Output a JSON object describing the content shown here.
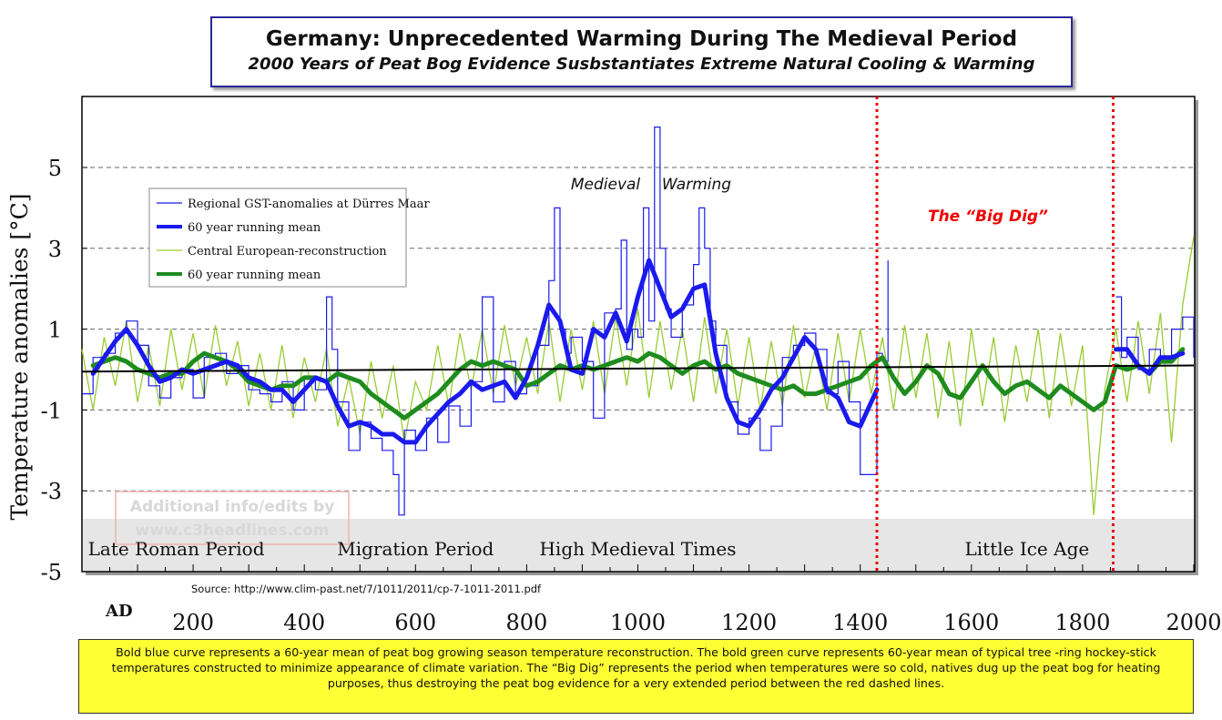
{
  "title": "Germany: Unprecedented Warming During The Medieval Period",
  "subtitle": "2000 Years of Peat Bog Evidence Susbstantiates Extreme Natural Cooling & Warming",
  "caption": "Bold blue curve represents a 60-year mean of peat bog growing season temperature reconstruction. The bold green curve represents 60-year mean of typical tree -ring hockey-stick temperatures constructed to minimize appearance of climate variation. The “Big Dig” represents the period when temperatures were so cold, natives dug up the peat bog for heating purposes, thus destroying the peat bog evidence for a very extended period between the red dashed lines.",
  "source": "Source: http://www.clim-past.net/7/1011/2011/cp-7-1011-2011.pdf",
  "watermark": [
    "Additional info/edits by",
    "www.c3headlines.com"
  ],
  "colors": {
    "blue": "#1a1aee",
    "green": "#1e8c1e",
    "light_green": "#99cc33",
    "red": "#ee0000",
    "band": "#e6e6e6",
    "caption_bg": "#ffff33"
  },
  "chart_data": {
    "type": "line",
    "ylabel": "Temperature anomalies [°C]",
    "xlabel_prefix": "AD",
    "xlim": [
      0,
      2000
    ],
    "ylim": [
      -5,
      7
    ],
    "x_ticks": [
      200,
      400,
      600,
      800,
      1000,
      1200,
      1400,
      1600,
      1800,
      2000
    ],
    "y_ticks": [
      -5,
      -3,
      -1,
      1,
      3,
      5
    ],
    "y_gridlines": [
      -3,
      -1,
      1,
      3,
      5
    ],
    "zero_line": 0,
    "legend": {
      "placement": "upper-left",
      "entries": [
        "Regional GST-anomalies at Dürres Maar",
        "60 year running mean",
        "Central European-reconstruction",
        "60 year running mean"
      ]
    },
    "annotations": {
      "medieval_left": "Medieval",
      "medieval_right": "Warming",
      "big_dig": "The “Big Dig”"
    },
    "periods": [
      {
        "label": "Late Roman Period",
        "x": 150
      },
      {
        "label": "Migration Period",
        "x": 600
      },
      {
        "label": "High Medieval Times",
        "x": 1000
      },
      {
        "label": "Little Ice Age",
        "x": 1700
      }
    ],
    "big_dig_bounds": [
      1430,
      1855
    ],
    "series": [
      {
        "name": "Regional GST-anomalies at Dürres Maar",
        "x": [
          0,
          20,
          40,
          60,
          80,
          100,
          120,
          140,
          160,
          180,
          200,
          220,
          240,
          260,
          280,
          300,
          320,
          340,
          360,
          380,
          400,
          420,
          440,
          450,
          460,
          480,
          500,
          520,
          540,
          560,
          570,
          580,
          600,
          620,
          640,
          660,
          680,
          700,
          720,
          740,
          760,
          780,
          800,
          820,
          840,
          850,
          860,
          870,
          880,
          900,
          920,
          940,
          960,
          970,
          980,
          990,
          1000,
          1010,
          1020,
          1030,
          1040,
          1050,
          1060,
          1080,
          1100,
          1110,
          1120,
          1130,
          1140,
          1160,
          1180,
          1200,
          1220,
          1240,
          1260,
          1280,
          1300,
          1320,
          1340,
          1360,
          1380,
          1400,
          1420,
          1430,
          1440,
          1450,
          1860,
          1870,
          1880,
          1900,
          1920,
          1940,
          1960,
          1980,
          2000
        ],
        "y": [
          -0.6,
          0.3,
          0.4,
          0.9,
          1.2,
          0.6,
          -0.4,
          -0.7,
          -0.2,
          0.0,
          -0.7,
          0.3,
          0.4,
          -0.1,
          0.1,
          -0.5,
          -0.6,
          -0.8,
          -0.3,
          -1.0,
          -0.2,
          -0.5,
          1.8,
          0.5,
          -0.8,
          -2.0,
          -1.3,
          -1.7,
          -2.0,
          -2.6,
          -3.6,
          -1.5,
          -2.0,
          -1.2,
          -1.8,
          -0.9,
          -1.4,
          -0.3,
          1.8,
          -0.8,
          0.2,
          -0.6,
          -0.4,
          0.6,
          2.2,
          4.0,
          1.0,
          0.4,
          0.8,
          0.2,
          -1.2,
          1.4,
          1.5,
          3.2,
          0.5,
          1.0,
          0.8,
          4.0,
          1.2,
          6.0,
          3.0,
          1.5,
          0.8,
          1.6,
          2.6,
          4.0,
          3.0,
          1.2,
          0.6,
          -0.8,
          -1.6,
          -1.2,
          -2.0,
          -1.4,
          0.3,
          0.6,
          0.9,
          0.5,
          -0.6,
          0.2,
          -0.8,
          -2.6,
          -2.6,
          0.4,
          0.2,
          2.7,
          1.8,
          0.3,
          0.8,
          0.0,
          0.5,
          0.2,
          1.0,
          1.3,
          0.3
        ]
      },
      {
        "name": "60 year running mean",
        "x": [
          20,
          40,
          60,
          80,
          100,
          120,
          140,
          160,
          180,
          200,
          220,
          240,
          260,
          280,
          300,
          320,
          340,
          360,
          380,
          400,
          420,
          440,
          460,
          480,
          500,
          520,
          540,
          560,
          580,
          600,
          620,
          640,
          660,
          680,
          700,
          720,
          740,
          760,
          780,
          800,
          820,
          840,
          860,
          880,
          900,
          920,
          940,
          960,
          980,
          1000,
          1020,
          1040,
          1060,
          1080,
          1100,
          1120,
          1140,
          1160,
          1180,
          1200,
          1220,
          1240,
          1260,
          1280,
          1300,
          1320,
          1340,
          1360,
          1380,
          1400,
          1420,
          1430,
          1860,
          1880,
          1900,
          1920,
          1940,
          1960,
          1980
        ],
        "y": [
          -0.1,
          0.3,
          0.7,
          1.0,
          0.6,
          0.1,
          -0.3,
          -0.2,
          0.0,
          -0.1,
          0.0,
          0.1,
          0.2,
          0.1,
          -0.2,
          -0.3,
          -0.5,
          -0.5,
          -0.8,
          -0.5,
          -0.2,
          -0.3,
          -0.9,
          -1.4,
          -1.3,
          -1.4,
          -1.6,
          -1.6,
          -1.8,
          -1.8,
          -1.4,
          -1.1,
          -0.8,
          -0.6,
          -0.3,
          -0.5,
          -0.4,
          -0.3,
          -0.7,
          -0.2,
          0.6,
          1.6,
          1.2,
          0.0,
          -0.1,
          1.0,
          0.8,
          1.4,
          0.7,
          1.8,
          2.7,
          2.0,
          1.3,
          1.5,
          2.0,
          2.1,
          0.4,
          -0.7,
          -1.3,
          -1.4,
          -1.0,
          -0.5,
          -0.2,
          0.3,
          0.8,
          0.5,
          -0.5,
          -0.7,
          -1.3,
          -1.4,
          -0.8,
          -0.5,
          0.5,
          0.5,
          0.1,
          -0.1,
          0.3,
          0.3,
          0.4
        ]
      },
      {
        "name": "Central European-reconstruction",
        "x": [
          0,
          20,
          40,
          60,
          80,
          100,
          120,
          140,
          160,
          180,
          200,
          220,
          240,
          260,
          280,
          300,
          320,
          340,
          360,
          380,
          400,
          420,
          440,
          460,
          480,
          500,
          520,
          540,
          560,
          580,
          600,
          620,
          640,
          660,
          680,
          700,
          720,
          740,
          760,
          780,
          800,
          820,
          840,
          860,
          880,
          900,
          920,
          940,
          960,
          980,
          1000,
          1020,
          1040,
          1060,
          1080,
          1100,
          1120,
          1140,
          1160,
          1180,
          1200,
          1220,
          1240,
          1260,
          1280,
          1300,
          1320,
          1340,
          1360,
          1380,
          1400,
          1420,
          1440,
          1460,
          1480,
          1500,
          1520,
          1540,
          1560,
          1580,
          1600,
          1620,
          1640,
          1660,
          1680,
          1700,
          1720,
          1740,
          1760,
          1780,
          1800,
          1820,
          1840,
          1860,
          1880,
          1900,
          1920,
          1940,
          1960,
          1980,
          2000
        ],
        "y": [
          0.5,
          -1.0,
          0.8,
          -0.4,
          1.2,
          -0.8,
          0.6,
          -0.9,
          1.0,
          -0.5,
          0.9,
          -0.7,
          1.1,
          -0.4,
          0.7,
          -0.9,
          0.4,
          -1.0,
          0.6,
          -1.2,
          0.3,
          -0.8,
          0.5,
          -1.4,
          -0.2,
          -1.6,
          0.2,
          -1.2,
          0.1,
          -1.8,
          -0.3,
          -1.0,
          0.6,
          -0.9,
          0.9,
          -0.5,
          1.0,
          -0.6,
          1.1,
          -0.4,
          0.8,
          -0.6,
          1.2,
          -0.8,
          1.0,
          -0.5,
          1.2,
          -0.6,
          1.3,
          -0.4,
          1.5,
          -0.7,
          1.2,
          -0.5,
          1.0,
          -0.8,
          1.3,
          -0.6,
          1.0,
          -0.9,
          0.8,
          -1.0,
          0.7,
          -0.9,
          1.1,
          -0.7,
          0.6,
          -1.0,
          0.9,
          -0.8,
          1.0,
          -0.6,
          0.8,
          -1.0,
          1.1,
          -0.7,
          0.9,
          -1.2,
          0.7,
          -1.4,
          1.0,
          -0.9,
          0.8,
          -1.3,
          0.6,
          -0.8,
          1.0,
          -1.2,
          0.9,
          -0.9,
          0.6,
          -3.6,
          -0.5,
          1.0,
          -0.8,
          1.2,
          -0.6,
          1.4,
          -1.8,
          1.6,
          3.3
        ]
      },
      {
        "name": "60 year running mean",
        "x": [
          20,
          40,
          60,
          80,
          100,
          120,
          140,
          160,
          180,
          200,
          220,
          240,
          260,
          280,
          300,
          320,
          340,
          360,
          380,
          400,
          420,
          440,
          460,
          480,
          500,
          520,
          540,
          560,
          580,
          600,
          620,
          640,
          660,
          680,
          700,
          720,
          740,
          760,
          780,
          800,
          820,
          840,
          860,
          880,
          900,
          920,
          940,
          960,
          980,
          1000,
          1020,
          1040,
          1060,
          1080,
          1100,
          1120,
          1140,
          1160,
          1180,
          1200,
          1220,
          1240,
          1260,
          1280,
          1300,
          1320,
          1340,
          1360,
          1380,
          1400,
          1420,
          1440,
          1460,
          1480,
          1500,
          1520,
          1540,
          1560,
          1580,
          1600,
          1620,
          1640,
          1660,
          1680,
          1700,
          1720,
          1740,
          1760,
          1780,
          1800,
          1820,
          1840,
          1860,
          1880,
          1900,
          1920,
          1940,
          1960,
          1980
        ],
        "y": [
          0.1,
          0.2,
          0.3,
          0.2,
          0.0,
          -0.1,
          -0.2,
          -0.1,
          -0.1,
          0.2,
          0.4,
          0.3,
          0.2,
          0.0,
          -0.3,
          -0.4,
          -0.5,
          -0.4,
          -0.4,
          -0.2,
          -0.2,
          -0.3,
          -0.1,
          -0.2,
          -0.3,
          -0.6,
          -0.8,
          -1.0,
          -1.2,
          -1.0,
          -0.8,
          -0.6,
          -0.3,
          0.0,
          0.2,
          0.1,
          0.2,
          0.1,
          0.0,
          -0.4,
          -0.3,
          -0.1,
          0.1,
          0.0,
          0.1,
          0.0,
          0.1,
          0.2,
          0.3,
          0.2,
          0.4,
          0.3,
          0.1,
          -0.1,
          0.1,
          0.2,
          0.0,
          0.1,
          -0.1,
          -0.2,
          -0.3,
          -0.4,
          -0.5,
          -0.4,
          -0.6,
          -0.6,
          -0.5,
          -0.4,
          -0.3,
          -0.2,
          0.1,
          0.3,
          -0.2,
          -0.6,
          -0.3,
          0.1,
          -0.1,
          -0.6,
          -0.7,
          -0.3,
          0.1,
          -0.3,
          -0.6,
          -0.4,
          -0.3,
          -0.5,
          -0.7,
          -0.4,
          -0.6,
          -0.8,
          -1.0,
          -0.8,
          0.1,
          0.0,
          0.1,
          -0.1,
          0.2,
          0.2,
          0.5
        ]
      }
    ]
  }
}
